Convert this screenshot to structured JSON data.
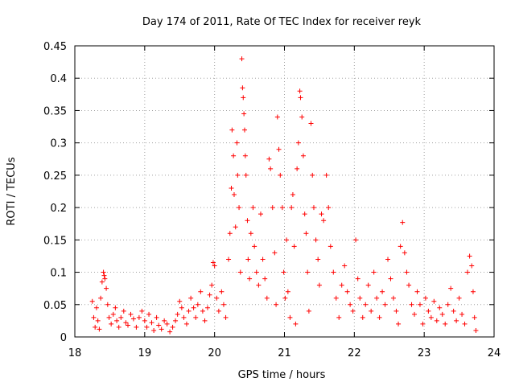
{
  "chart_data": {
    "type": "scatter",
    "title": "Day 174 of 2011, Rate Of TEC Index for receiver reyk",
    "xlabel": "GPS time / hours",
    "ylabel": "ROTI / TECUs",
    "xlim": [
      18,
      24
    ],
    "ylim": [
      0,
      0.45
    ],
    "xticks": [
      "18",
      "19",
      "20",
      "21",
      "22",
      "23",
      "24"
    ],
    "yticks": [
      "0",
      "0.05",
      "0.1",
      "0.15",
      "0.2",
      "0.25",
      "0.3",
      "0.35",
      "0.4",
      "0.45"
    ],
    "xtick_values": [
      18,
      19,
      20,
      21,
      22,
      23,
      24
    ],
    "ytick_values": [
      0,
      0.05,
      0.1,
      0.15,
      0.2,
      0.25,
      0.3,
      0.35,
      0.4,
      0.45
    ],
    "grid": true,
    "marker": "+",
    "color": "#ff0000",
    "points": [
      [
        18.25,
        0.055
      ],
      [
        18.27,
        0.03
      ],
      [
        18.29,
        0.015
      ],
      [
        18.31,
        0.045
      ],
      [
        18.33,
        0.025
      ],
      [
        18.35,
        0.012
      ],
      [
        18.37,
        0.06
      ],
      [
        18.39,
        0.085
      ],
      [
        18.41,
        0.1
      ],
      [
        18.42,
        0.095
      ],
      [
        18.43,
        0.09
      ],
      [
        18.45,
        0.075
      ],
      [
        18.47,
        0.05
      ],
      [
        18.49,
        0.03
      ],
      [
        18.52,
        0.02
      ],
      [
        18.55,
        0.035
      ],
      [
        18.58,
        0.045
      ],
      [
        18.6,
        0.025
      ],
      [
        18.63,
        0.015
      ],
      [
        18.66,
        0.03
      ],
      [
        18.7,
        0.04
      ],
      [
        18.73,
        0.022
      ],
      [
        18.76,
        0.018
      ],
      [
        18.8,
        0.035
      ],
      [
        18.84,
        0.028
      ],
      [
        18.88,
        0.015
      ],
      [
        18.92,
        0.03
      ],
      [
        18.96,
        0.04
      ],
      [
        19.0,
        0.025
      ],
      [
        19.03,
        0.015
      ],
      [
        19.06,
        0.035
      ],
      [
        19.1,
        0.022
      ],
      [
        19.13,
        0.01
      ],
      [
        19.17,
        0.03
      ],
      [
        19.2,
        0.018
      ],
      [
        19.24,
        0.012
      ],
      [
        19.28,
        0.025
      ],
      [
        19.32,
        0.02
      ],
      [
        19.36,
        0.008
      ],
      [
        19.4,
        0.015
      ],
      [
        19.44,
        0.025
      ],
      [
        19.47,
        0.035
      ],
      [
        19.5,
        0.055
      ],
      [
        19.53,
        0.045
      ],
      [
        19.56,
        0.03
      ],
      [
        19.6,
        0.02
      ],
      [
        19.63,
        0.04
      ],
      [
        19.66,
        0.06
      ],
      [
        19.7,
        0.045
      ],
      [
        19.73,
        0.03
      ],
      [
        19.76,
        0.05
      ],
      [
        19.8,
        0.07
      ],
      [
        19.83,
        0.04
      ],
      [
        19.86,
        0.025
      ],
      [
        19.9,
        0.045
      ],
      [
        19.93,
        0.065
      ],
      [
        19.96,
        0.08
      ],
      [
        19.98,
        0.115
      ],
      [
        20.0,
        0.11
      ],
      [
        20.03,
        0.06
      ],
      [
        20.06,
        0.04
      ],
      [
        20.1,
        0.07
      ],
      [
        20.13,
        0.05
      ],
      [
        20.16,
        0.03
      ],
      [
        20.2,
        0.12
      ],
      [
        20.22,
        0.16
      ],
      [
        20.24,
        0.23
      ],
      [
        20.25,
        0.32
      ],
      [
        20.27,
        0.28
      ],
      [
        20.28,
        0.22
      ],
      [
        20.3,
        0.17
      ],
      [
        20.32,
        0.3
      ],
      [
        20.33,
        0.25
      ],
      [
        20.35,
        0.2
      ],
      [
        20.37,
        0.1
      ],
      [
        20.39,
        0.43
      ],
      [
        20.4,
        0.385
      ],
      [
        20.41,
        0.37
      ],
      [
        20.42,
        0.345
      ],
      [
        20.43,
        0.32
      ],
      [
        20.44,
        0.28
      ],
      [
        20.45,
        0.25
      ],
      [
        20.47,
        0.18
      ],
      [
        20.48,
        0.12
      ],
      [
        20.5,
        0.09
      ],
      [
        20.52,
        0.16
      ],
      [
        20.55,
        0.2
      ],
      [
        20.57,
        0.14
      ],
      [
        20.6,
        0.1
      ],
      [
        20.63,
        0.08
      ],
      [
        20.66,
        0.19
      ],
      [
        20.69,
        0.12
      ],
      [
        20.72,
        0.09
      ],
      [
        20.75,
        0.06
      ],
      [
        20.78,
        0.275
      ],
      [
        20.8,
        0.26
      ],
      [
        20.83,
        0.2
      ],
      [
        20.86,
        0.13
      ],
      [
        20.88,
        0.05
      ],
      [
        20.9,
        0.34
      ],
      [
        20.92,
        0.29
      ],
      [
        20.94,
        0.25
      ],
      [
        20.97,
        0.2
      ],
      [
        20.99,
        0.1
      ],
      [
        21.01,
        0.06
      ],
      [
        21.03,
        0.15
      ],
      [
        21.05,
        0.07
      ],
      [
        21.08,
        0.03
      ],
      [
        21.1,
        0.2
      ],
      [
        21.12,
        0.22
      ],
      [
        21.14,
        0.14
      ],
      [
        21.16,
        0.02
      ],
      [
        21.18,
        0.26
      ],
      [
        21.2,
        0.3
      ],
      [
        21.22,
        0.38
      ],
      [
        21.23,
        0.37
      ],
      [
        21.25,
        0.34
      ],
      [
        21.27,
        0.28
      ],
      [
        21.29,
        0.19
      ],
      [
        21.31,
        0.16
      ],
      [
        21.33,
        0.1
      ],
      [
        21.35,
        0.04
      ],
      [
        21.38,
        0.33
      ],
      [
        21.4,
        0.25
      ],
      [
        21.42,
        0.2
      ],
      [
        21.45,
        0.15
      ],
      [
        21.48,
        0.12
      ],
      [
        21.5,
        0.08
      ],
      [
        21.53,
        0.19
      ],
      [
        21.56,
        0.18
      ],
      [
        21.6,
        0.25
      ],
      [
        21.63,
        0.2
      ],
      [
        21.66,
        0.14
      ],
      [
        21.7,
        0.1
      ],
      [
        21.74,
        0.06
      ],
      [
        21.78,
        0.03
      ],
      [
        21.82,
        0.08
      ],
      [
        21.86,
        0.11
      ],
      [
        21.9,
        0.07
      ],
      [
        21.94,
        0.05
      ],
      [
        21.98,
        0.04
      ],
      [
        22.02,
        0.15
      ],
      [
        22.05,
        0.09
      ],
      [
        22.08,
        0.06
      ],
      [
        22.12,
        0.03
      ],
      [
        22.16,
        0.05
      ],
      [
        22.2,
        0.08
      ],
      [
        22.24,
        0.04
      ],
      [
        22.28,
        0.1
      ],
      [
        22.32,
        0.06
      ],
      [
        22.36,
        0.03
      ],
      [
        22.4,
        0.07
      ],
      [
        22.44,
        0.05
      ],
      [
        22.48,
        0.12
      ],
      [
        22.52,
        0.09
      ],
      [
        22.56,
        0.06
      ],
      [
        22.6,
        0.04
      ],
      [
        22.63,
        0.02
      ],
      [
        22.66,
        0.14
      ],
      [
        22.69,
        0.177
      ],
      [
        22.72,
        0.13
      ],
      [
        22.75,
        0.1
      ],
      [
        22.78,
        0.08
      ],
      [
        22.82,
        0.05
      ],
      [
        22.86,
        0.035
      ],
      [
        22.9,
        0.07
      ],
      [
        22.94,
        0.05
      ],
      [
        22.98,
        0.02
      ],
      [
        23.02,
        0.06
      ],
      [
        23.06,
        0.04
      ],
      [
        23.1,
        0.03
      ],
      [
        23.14,
        0.055
      ],
      [
        23.18,
        0.025
      ],
      [
        23.22,
        0.045
      ],
      [
        23.26,
        0.035
      ],
      [
        23.3,
        0.02
      ],
      [
        23.34,
        0.05
      ],
      [
        23.38,
        0.075
      ],
      [
        23.42,
        0.04
      ],
      [
        23.46,
        0.025
      ],
      [
        23.5,
        0.06
      ],
      [
        23.54,
        0.035
      ],
      [
        23.58,
        0.02
      ],
      [
        23.62,
        0.1
      ],
      [
        23.65,
        0.125
      ],
      [
        23.68,
        0.11
      ],
      [
        23.7,
        0.07
      ],
      [
        23.72,
        0.03
      ],
      [
        23.74,
        0.01
      ]
    ]
  }
}
